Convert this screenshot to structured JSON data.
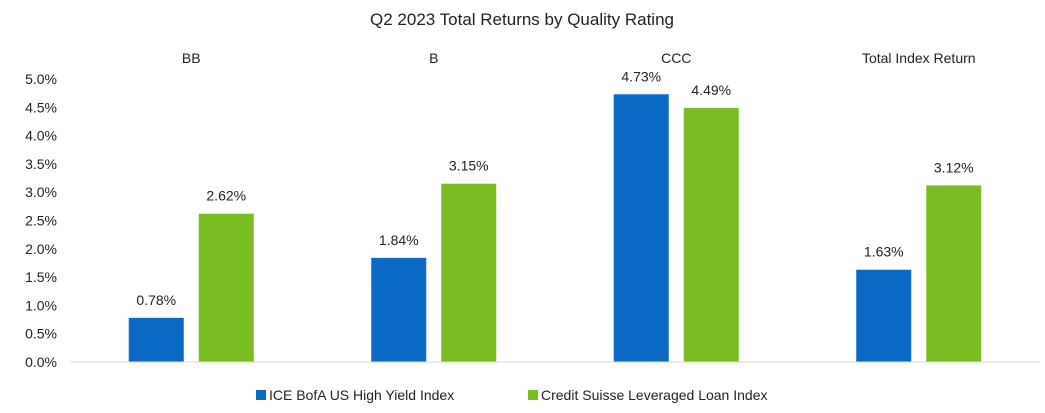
{
  "chart_data": {
    "type": "bar",
    "title": "Q2 2023 Total Returns by Quality Rating",
    "categories": [
      "BB",
      "B",
      "CCC",
      "Total Index Return"
    ],
    "series": [
      {
        "name": "ICE BofA US High Yield Index",
        "color": "#0a6ac6",
        "values": [
          0.78,
          1.84,
          4.73,
          1.63
        ],
        "labels": [
          "0.78%",
          "1.84%",
          "4.73%",
          "1.63%"
        ]
      },
      {
        "name": "Credit Suisse Leveraged Loan Index",
        "color": "#79be20",
        "values": [
          2.62,
          3.15,
          4.49,
          3.12
        ],
        "labels": [
          "2.62%",
          "3.15%",
          "4.49%",
          "3.12%"
        ]
      }
    ],
    "ylim": [
      0,
      5
    ],
    "yticks": [
      0,
      0.5,
      1,
      1.5,
      2,
      2.5,
      3,
      3.5,
      4,
      4.5,
      5
    ],
    "ytick_labels": [
      "0.0%",
      "0.5%",
      "1.0%",
      "1.5%",
      "2.0%",
      "2.5%",
      "3.0%",
      "3.5%",
      "4.0%",
      "4.5%",
      "5.0%"
    ],
    "xlabel": "",
    "ylabel": "",
    "grid": false,
    "legend_position": "bottom",
    "axis_color": "#d9d9d9"
  }
}
